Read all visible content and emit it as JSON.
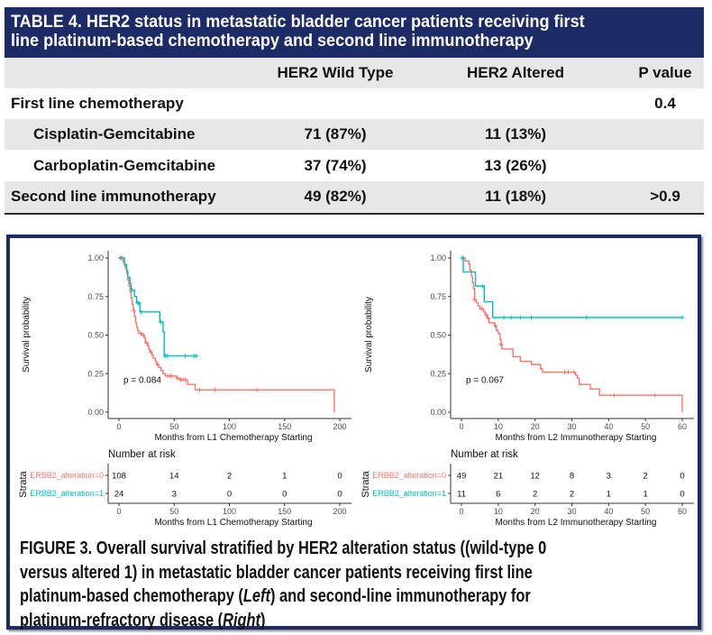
{
  "colors": {
    "header_bg": "#1c2a66",
    "alteration_0": "#F8766D",
    "alteration_1": "#00BFC4"
  },
  "table": {
    "title_lines": [
      "TABLE 4. HER2 status in metastatic bladder cancer patients receiving first",
      "line platinum-based chemotherapy and second line immunotherapy"
    ],
    "columns": [
      "",
      "HER2 Wild Type",
      "HER2 Altered",
      "P value"
    ],
    "rows": [
      {
        "label": "First line chemotherapy",
        "wild_type": "",
        "altered": "",
        "p_value": "0.4"
      },
      {
        "label": "Cisplatin-Gemcitabine",
        "wild_type": "71 (87%)",
        "altered": "11 (13%)",
        "p_value": ""
      },
      {
        "label": "Carboplatin-Gemcitabine",
        "wild_type": "37 (74%)",
        "altered": "13 (26%)",
        "p_value": ""
      },
      {
        "label": "Second line immunotherapy",
        "wild_type": "49 (82%)",
        "altered": "11 (18%)",
        "p_value": ">0.9"
      }
    ]
  },
  "chart_data": [
    {
      "type": "line",
      "subtype": "kaplan-meier-step",
      "panel": "Left",
      "title": "",
      "xlabel": "Months from L1 Chemotherapy Starting",
      "ylabel": "Survival probability",
      "xlim": [
        0,
        200
      ],
      "ylim": [
        0,
        1
      ],
      "grid": false,
      "x_ticks": [
        0,
        50,
        100,
        150,
        200
      ],
      "x_tick_labels": [
        "0",
        "50",
        "100",
        "150",
        "200"
      ],
      "y_ticks": [
        0,
        0.25,
        0.5,
        0.75,
        1.0
      ],
      "y_tick_labels": [
        "0.00",
        "0.25",
        "0.50",
        "0.75",
        "1.00"
      ],
      "annotation": "p = 0.084",
      "series": [
        {
          "name": "ERBB2_alteration=0",
          "color": "#F8766D",
          "steps": [
            [
              0,
              1.0
            ],
            [
              4,
              0.97
            ],
            [
              5,
              0.95
            ],
            [
              6,
              0.93
            ],
            [
              7,
              0.9
            ],
            [
              8,
              0.86
            ],
            [
              9,
              0.82
            ],
            [
              10,
              0.78
            ],
            [
              11,
              0.74
            ],
            [
              12,
              0.7
            ],
            [
              13,
              0.66
            ],
            [
              14,
              0.62
            ],
            [
              15,
              0.58
            ],
            [
              16,
              0.55
            ],
            [
              17,
              0.53
            ],
            [
              18,
              0.51
            ],
            [
              21,
              0.5
            ],
            [
              23,
              0.48
            ],
            [
              24,
              0.45
            ],
            [
              26,
              0.43
            ],
            [
              27,
              0.41
            ],
            [
              28,
              0.39
            ],
            [
              30,
              0.37
            ],
            [
              31,
              0.35
            ],
            [
              33,
              0.33
            ],
            [
              34,
              0.31
            ],
            [
              36,
              0.29
            ],
            [
              38,
              0.27
            ],
            [
              40,
              0.25
            ],
            [
              42,
              0.235
            ],
            [
              52,
              0.22
            ],
            [
              55,
              0.21
            ],
            [
              62,
              0.18
            ],
            [
              69,
              0.145
            ],
            [
              195,
              0.0
            ]
          ],
          "end": 195,
          "censored": [
            [
              1,
              1.0
            ],
            [
              2,
              1.0
            ],
            [
              3,
              1.0
            ],
            [
              8.5,
              0.86
            ],
            [
              13.5,
              0.66
            ],
            [
              20,
              0.51
            ],
            [
              22,
              0.5
            ],
            [
              25,
              0.45
            ],
            [
              29,
              0.39
            ],
            [
              35,
              0.31
            ],
            [
              44,
              0.235
            ],
            [
              46,
              0.235
            ],
            [
              48,
              0.235
            ],
            [
              53,
              0.22
            ],
            [
              56,
              0.21
            ],
            [
              58,
              0.21
            ],
            [
              60,
              0.21
            ],
            [
              73,
              0.145
            ],
            [
              87,
              0.145
            ],
            [
              125,
              0.145
            ]
          ]
        },
        {
          "name": "ERBB2_alteration=1",
          "color": "#00BFC4",
          "steps": [
            [
              0,
              1.0
            ],
            [
              5,
              0.958
            ],
            [
              7,
              0.917
            ],
            [
              8,
              0.875
            ],
            [
              10,
              0.833
            ],
            [
              11,
              0.792
            ],
            [
              14,
              0.75
            ],
            [
              16,
              0.708
            ],
            [
              19,
              0.65
            ],
            [
              37,
              0.585
            ],
            [
              40,
              0.52
            ],
            [
              41,
              0.365
            ]
          ],
          "end": 71,
          "censored": [
            [
              12,
              0.792
            ],
            [
              17,
              0.708
            ],
            [
              18,
              0.708
            ],
            [
              20,
              0.65
            ],
            [
              38,
              0.585
            ],
            [
              42,
              0.365
            ],
            [
              44,
              0.365
            ],
            [
              60,
              0.365
            ],
            [
              68,
              0.365
            ],
            [
              70,
              0.365
            ]
          ]
        }
      ],
      "risk_table": {
        "title": "Number at risk",
        "strata_label": "Strata",
        "xlabel": "Months from L1 Chemotherapy Starting",
        "times": [
          0,
          50,
          100,
          150,
          200
        ],
        "time_labels": [
          "0",
          "50",
          "100",
          "150",
          "200"
        ],
        "rows": [
          {
            "name": "ERBB2_alteration=0",
            "color": "#F8766D",
            "values": [
              "108",
              "14",
              "2",
              "1",
              "0"
            ]
          },
          {
            "name": "ERBB2_alteration=1",
            "color": "#00BFC4",
            "values": [
              "24",
              "3",
              "0",
              "0",
              "0"
            ]
          }
        ]
      }
    },
    {
      "type": "line",
      "subtype": "kaplan-meier-step",
      "panel": "Right",
      "title": "",
      "xlabel": "Months from L2 Immunotherapy Starting",
      "ylabel": "Survival probability",
      "xlim": [
        0,
        60
      ],
      "ylim": [
        0,
        1
      ],
      "grid": false,
      "x_ticks": [
        0,
        10,
        20,
        30,
        40,
        50,
        60
      ],
      "x_tick_labels": [
        "0",
        "10",
        "20",
        "30",
        "40",
        "50",
        "60"
      ],
      "y_ticks": [
        0,
        0.25,
        0.5,
        0.75,
        1.0
      ],
      "y_tick_labels": [
        "0.00",
        "0.25",
        "0.50",
        "0.75",
        "1.00"
      ],
      "annotation": "p = 0.067",
      "series": [
        {
          "name": "ERBB2_alteration=0",
          "color": "#F8766D",
          "steps": [
            [
              0,
              1.0
            ],
            [
              1,
              0.98
            ],
            [
              2,
              0.96
            ],
            [
              2.3,
              0.92
            ],
            [
              2.7,
              0.88
            ],
            [
              3,
              0.84
            ],
            [
              3.3,
              0.8
            ],
            [
              3.6,
              0.73
            ],
            [
              4,
              0.71
            ],
            [
              4.5,
              0.69
            ],
            [
              5,
              0.67
            ],
            [
              6,
              0.65
            ],
            [
              6.5,
              0.63
            ],
            [
              7,
              0.61
            ],
            [
              7.5,
              0.58
            ],
            [
              9,
              0.56
            ],
            [
              9.5,
              0.53
            ],
            [
              10,
              0.51
            ],
            [
              10.5,
              0.47
            ],
            [
              10.8,
              0.44
            ],
            [
              11,
              0.41
            ],
            [
              14,
              0.36
            ],
            [
              16,
              0.33
            ],
            [
              19,
              0.31
            ],
            [
              21.5,
              0.28
            ],
            [
              22,
              0.26
            ],
            [
              31,
              0.24
            ],
            [
              31.5,
              0.22
            ],
            [
              32,
              0.18
            ],
            [
              35,
              0.15
            ],
            [
              37.5,
              0.11
            ],
            [
              60,
              0.0
            ]
          ],
          "end": 60,
          "censored": [
            [
              0.5,
              1.0
            ],
            [
              3.5,
              0.73
            ],
            [
              5.5,
              0.67
            ],
            [
              6.8,
              0.63
            ],
            [
              7.3,
              0.61
            ],
            [
              9.2,
              0.56
            ],
            [
              10.7,
              0.44
            ],
            [
              28,
              0.26
            ],
            [
              29,
              0.26
            ],
            [
              30.5,
              0.26
            ],
            [
              41.5,
              0.11
            ],
            [
              52.5,
              0.11
            ]
          ]
        },
        {
          "name": "ERBB2_alteration=1",
          "color": "#00BFC4",
          "steps": [
            [
              0,
              1.0
            ],
            [
              0.5,
              0.909
            ],
            [
              3.8,
              0.818
            ],
            [
              6.2,
              0.716
            ],
            [
              8.5,
              0.614
            ]
          ],
          "end": 60,
          "censored": [
            [
              0.2,
              1.0
            ],
            [
              5.8,
              0.818
            ],
            [
              11.5,
              0.614
            ],
            [
              13.5,
              0.614
            ],
            [
              16,
              0.614
            ],
            [
              19,
              0.614
            ],
            [
              34,
              0.614
            ],
            [
              60,
              0.614
            ]
          ]
        }
      ],
      "risk_table": {
        "title": "Number at risk",
        "strata_label": "Strata",
        "xlabel": "Months from L2 Immunotherapy Starting",
        "times": [
          0,
          10,
          20,
          30,
          40,
          50,
          60
        ],
        "time_labels": [
          "0",
          "10",
          "20",
          "30",
          "40",
          "50",
          "60"
        ],
        "rows": [
          {
            "name": "ERBB2_alteration=0",
            "color": "#F8766D",
            "values": [
              "49",
              "21",
              "12",
              "8",
              "3",
              "2",
              "0"
            ]
          },
          {
            "name": "ERBB2_alteration=1",
            "color": "#00BFC4",
            "values": [
              "11",
              "6",
              "2",
              "2",
              "1",
              "1",
              "0"
            ]
          }
        ]
      }
    }
  ],
  "caption": {
    "lines": [
      [
        {
          "text": "FIGURE 3. Overall survival stratified by HER2 alteration status ((wild-type 0"
        }
      ],
      [
        {
          "text": "versus altered 1) in metastatic bladder cancer patients receiving first line"
        }
      ],
      [
        {
          "text": "platinum-based chemotherapy ("
        },
        {
          "text": "Left",
          "italic": true
        },
        {
          "text": ") and second-line immunotherapy for"
        }
      ],
      [
        {
          "text": "platinum-refractory disease ("
        },
        {
          "text": "Right",
          "italic": true
        },
        {
          "text": ")"
        }
      ]
    ]
  }
}
